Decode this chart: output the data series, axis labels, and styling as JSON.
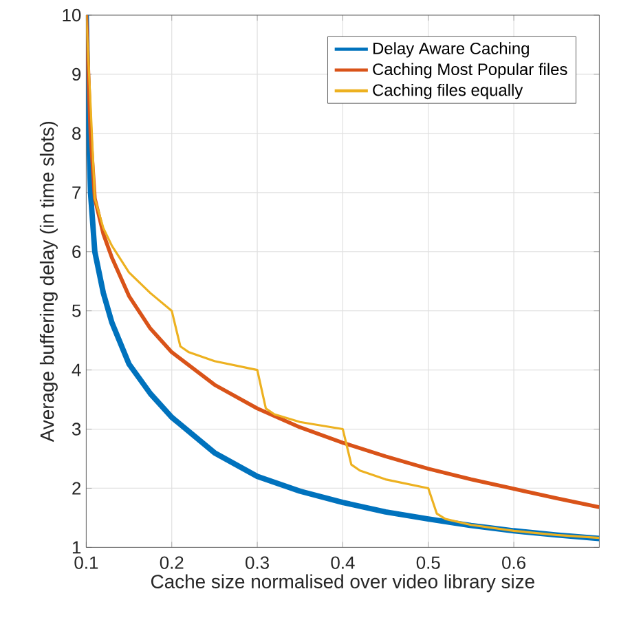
{
  "chart_data": {
    "type": "line",
    "xlabel": "Cache size normalised over video library size",
    "ylabel": "Average buffering delay (in time slots)",
    "xlim": [
      0.1,
      0.7
    ],
    "ylim": [
      1,
      10
    ],
    "xticks": [
      0.1,
      0.2,
      0.3,
      0.4,
      0.5,
      0.6
    ],
    "yticks": [
      1,
      2,
      3,
      4,
      5,
      6,
      7,
      8,
      9,
      10
    ],
    "grid": true,
    "legend": "top right",
    "marker": "none",
    "line_style": "solid",
    "series": [
      {
        "name": "Delay Aware Caching",
        "color": "#0072bd",
        "x": [
          0.1,
          0.102,
          0.105,
          0.11,
          0.12,
          0.13,
          0.15,
          0.175,
          0.2,
          0.25,
          0.3,
          0.35,
          0.4,
          0.45,
          0.5,
          0.55,
          0.6,
          0.65,
          0.7
        ],
        "values": [
          10,
          8.5,
          7,
          6.0,
          5.3,
          4.8,
          4.1,
          3.6,
          3.2,
          2.6,
          2.2,
          1.95,
          1.76,
          1.6,
          1.48,
          1.37,
          1.28,
          1.21,
          1.15
        ]
      },
      {
        "name": "Caching Most Popular files",
        "color": "#d95319",
        "x": [
          0.1,
          0.105,
          0.11,
          0.12,
          0.13,
          0.15,
          0.175,
          0.2,
          0.25,
          0.3,
          0.35,
          0.4,
          0.45,
          0.5,
          0.55,
          0.6,
          0.65,
          0.7
        ],
        "values": [
          10,
          8,
          6.9,
          6.3,
          5.9,
          5.25,
          4.7,
          4.3,
          3.75,
          3.35,
          3.03,
          2.77,
          2.54,
          2.33,
          2.15,
          1.99,
          1.83,
          1.68
        ]
      },
      {
        "name": "Caching files equally",
        "color": "#edb120",
        "x": [
          0.1,
          0.105,
          0.11,
          0.12,
          0.13,
          0.15,
          0.175,
          0.2,
          0.21,
          0.22,
          0.25,
          0.3,
          0.31,
          0.32,
          0.35,
          0.4,
          0.41,
          0.42,
          0.45,
          0.5,
          0.51,
          0.52,
          0.55,
          0.6,
          0.65,
          0.7
        ],
        "values": [
          10,
          8.5,
          6.9,
          6.4,
          6.1,
          5.65,
          5.3,
          5.0,
          4.4,
          4.3,
          4.15,
          4.0,
          3.35,
          3.25,
          3.12,
          3.0,
          2.4,
          2.3,
          2.15,
          2.0,
          1.57,
          1.48,
          1.38,
          1.28,
          1.21,
          1.16
        ]
      }
    ]
  }
}
